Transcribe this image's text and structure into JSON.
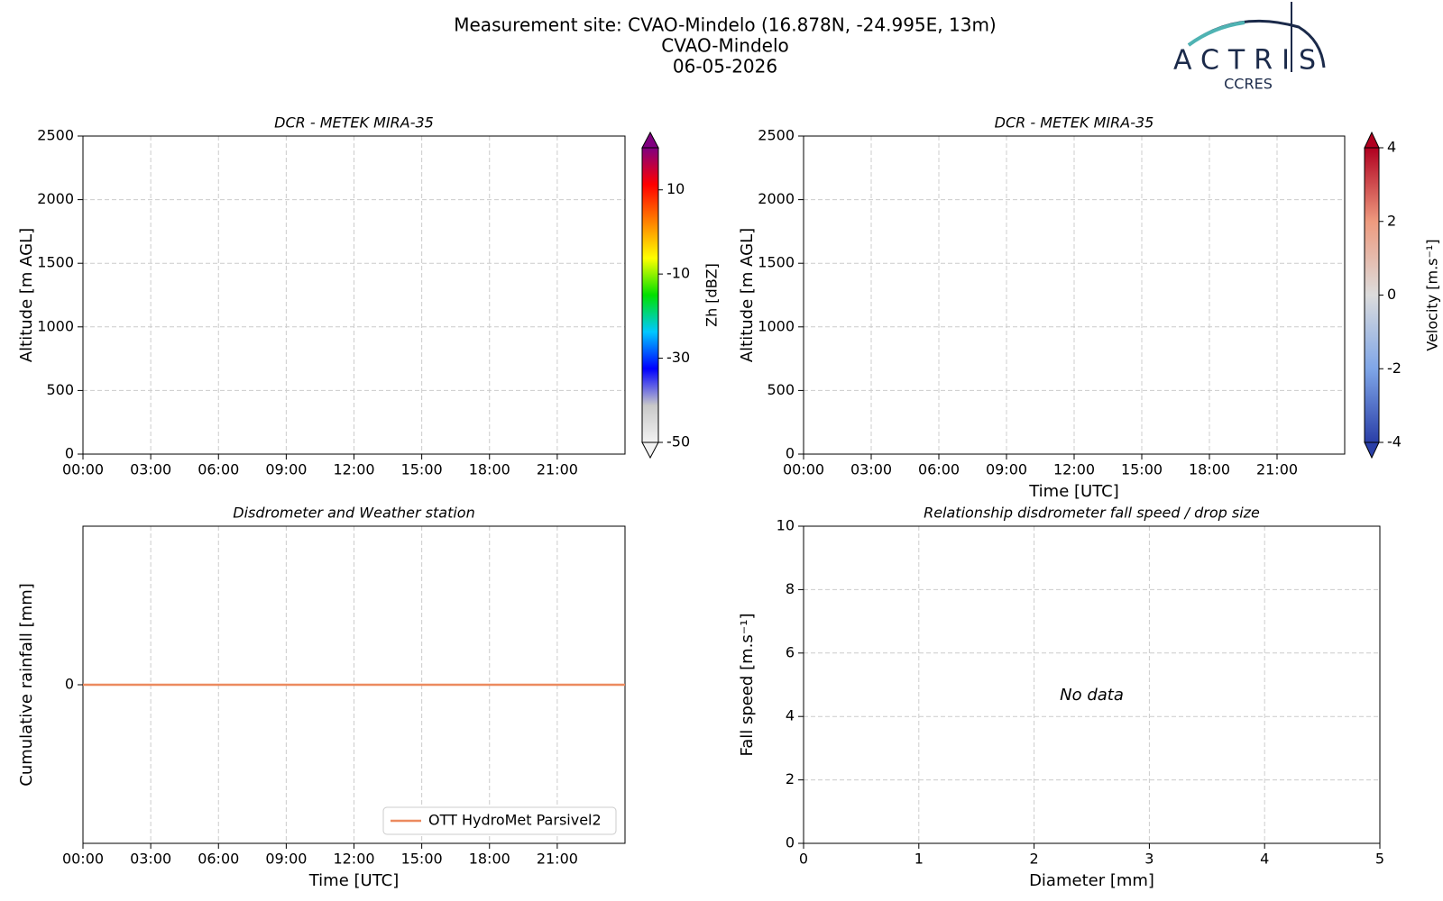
{
  "header": {
    "title_lines": [
      "Measurement site: CVAO-Mindelo (16.878N, -24.995E, 13m)",
      "CVAO-Mindelo",
      "06-05-2026"
    ],
    "logo_text": "ACTRIS",
    "logo_subtext": "CCRES"
  },
  "chart_data": [
    {
      "type": "heatmap",
      "title": "DCR - METEK MIRA-35",
      "ylabel": "Altitude [m AGL]",
      "xlim": [
        0,
        24
      ],
      "xticks": [
        {
          "value": 0,
          "label": "00:00"
        },
        {
          "value": 3,
          "label": "03:00"
        },
        {
          "value": 6,
          "label": "06:00"
        },
        {
          "value": 9,
          "label": "09:00"
        },
        {
          "value": 12,
          "label": "12:00"
        },
        {
          "value": 15,
          "label": "15:00"
        },
        {
          "value": 18,
          "label": "18:00"
        },
        {
          "value": 21,
          "label": "21:00"
        }
      ],
      "ylim": [
        0,
        2500
      ],
      "yticks": [
        0,
        500,
        1000,
        1500,
        2000,
        2500
      ],
      "grid": true,
      "colorbar_label": "Zh [dBZ]",
      "clim": [
        -50,
        20
      ],
      "cticks": [
        -50,
        -30,
        -10,
        10
      ],
      "colormap": [
        "#f2f2f2",
        "#c8c8c8",
        "#0000ff",
        "#00c8ff",
        "#00e000",
        "#ffff00",
        "#ff8000",
        "#ff0000",
        "#800080"
      ]
    },
    {
      "type": "heatmap",
      "title": "DCR - METEK MIRA-35",
      "ylabel": "Altitude [m AGL]",
      "xlabel": "Time [UTC]",
      "xlim": [
        0,
        24
      ],
      "xticks": [
        {
          "value": 0,
          "label": "00:00"
        },
        {
          "value": 3,
          "label": "03:00"
        },
        {
          "value": 6,
          "label": "06:00"
        },
        {
          "value": 9,
          "label": "09:00"
        },
        {
          "value": 12,
          "label": "12:00"
        },
        {
          "value": 15,
          "label": "15:00"
        },
        {
          "value": 18,
          "label": "18:00"
        },
        {
          "value": 21,
          "label": "21:00"
        }
      ],
      "ylim": [
        0,
        2500
      ],
      "yticks": [
        0,
        500,
        1000,
        1500,
        2000,
        2500
      ],
      "grid": true,
      "colorbar_label": "Velocity [m.s⁻¹]",
      "clim": [
        -4,
        4
      ],
      "cticks": [
        -4,
        -2,
        0,
        2,
        4
      ],
      "colormap": [
        "#2a3fa8",
        "#7fa6e8",
        "#dcdcdc",
        "#ee9a7e",
        "#b00020"
      ]
    },
    {
      "type": "line",
      "title": "Disdrometer and Weather station",
      "ylabel": "Cumulative rainfall [mm]",
      "xlabel": "Time [UTC]",
      "xlim": [
        0,
        24
      ],
      "xticks": [
        {
          "value": 0,
          "label": "00:00"
        },
        {
          "value": 3,
          "label": "03:00"
        },
        {
          "value": 6,
          "label": "06:00"
        },
        {
          "value": 9,
          "label": "09:00"
        },
        {
          "value": 12,
          "label": "12:00"
        },
        {
          "value": 15,
          "label": "15:00"
        },
        {
          "value": 18,
          "label": "18:00"
        },
        {
          "value": 21,
          "label": "21:00"
        }
      ],
      "ylim": [
        -1,
        1
      ],
      "yticks": [
        0
      ],
      "grid": true,
      "legend": "lower right",
      "x": [
        0,
        24
      ],
      "series": [
        {
          "name": "OTT HydroMet Parsivel2",
          "color": "#ec8a5f",
          "values": [
            0,
            0
          ]
        }
      ]
    },
    {
      "type": "scatter",
      "title": "Relationship disdrometer fall speed / drop size",
      "ylabel": "Fall speed [m.s⁻¹]",
      "xlabel": "Diameter [mm]",
      "xlim": [
        0,
        5
      ],
      "xticks": [
        0,
        1,
        2,
        3,
        4,
        5
      ],
      "ylim": [
        0,
        10
      ],
      "yticks": [
        0,
        2,
        4,
        6,
        8,
        10
      ],
      "grid": true,
      "annotation": "No data"
    }
  ]
}
